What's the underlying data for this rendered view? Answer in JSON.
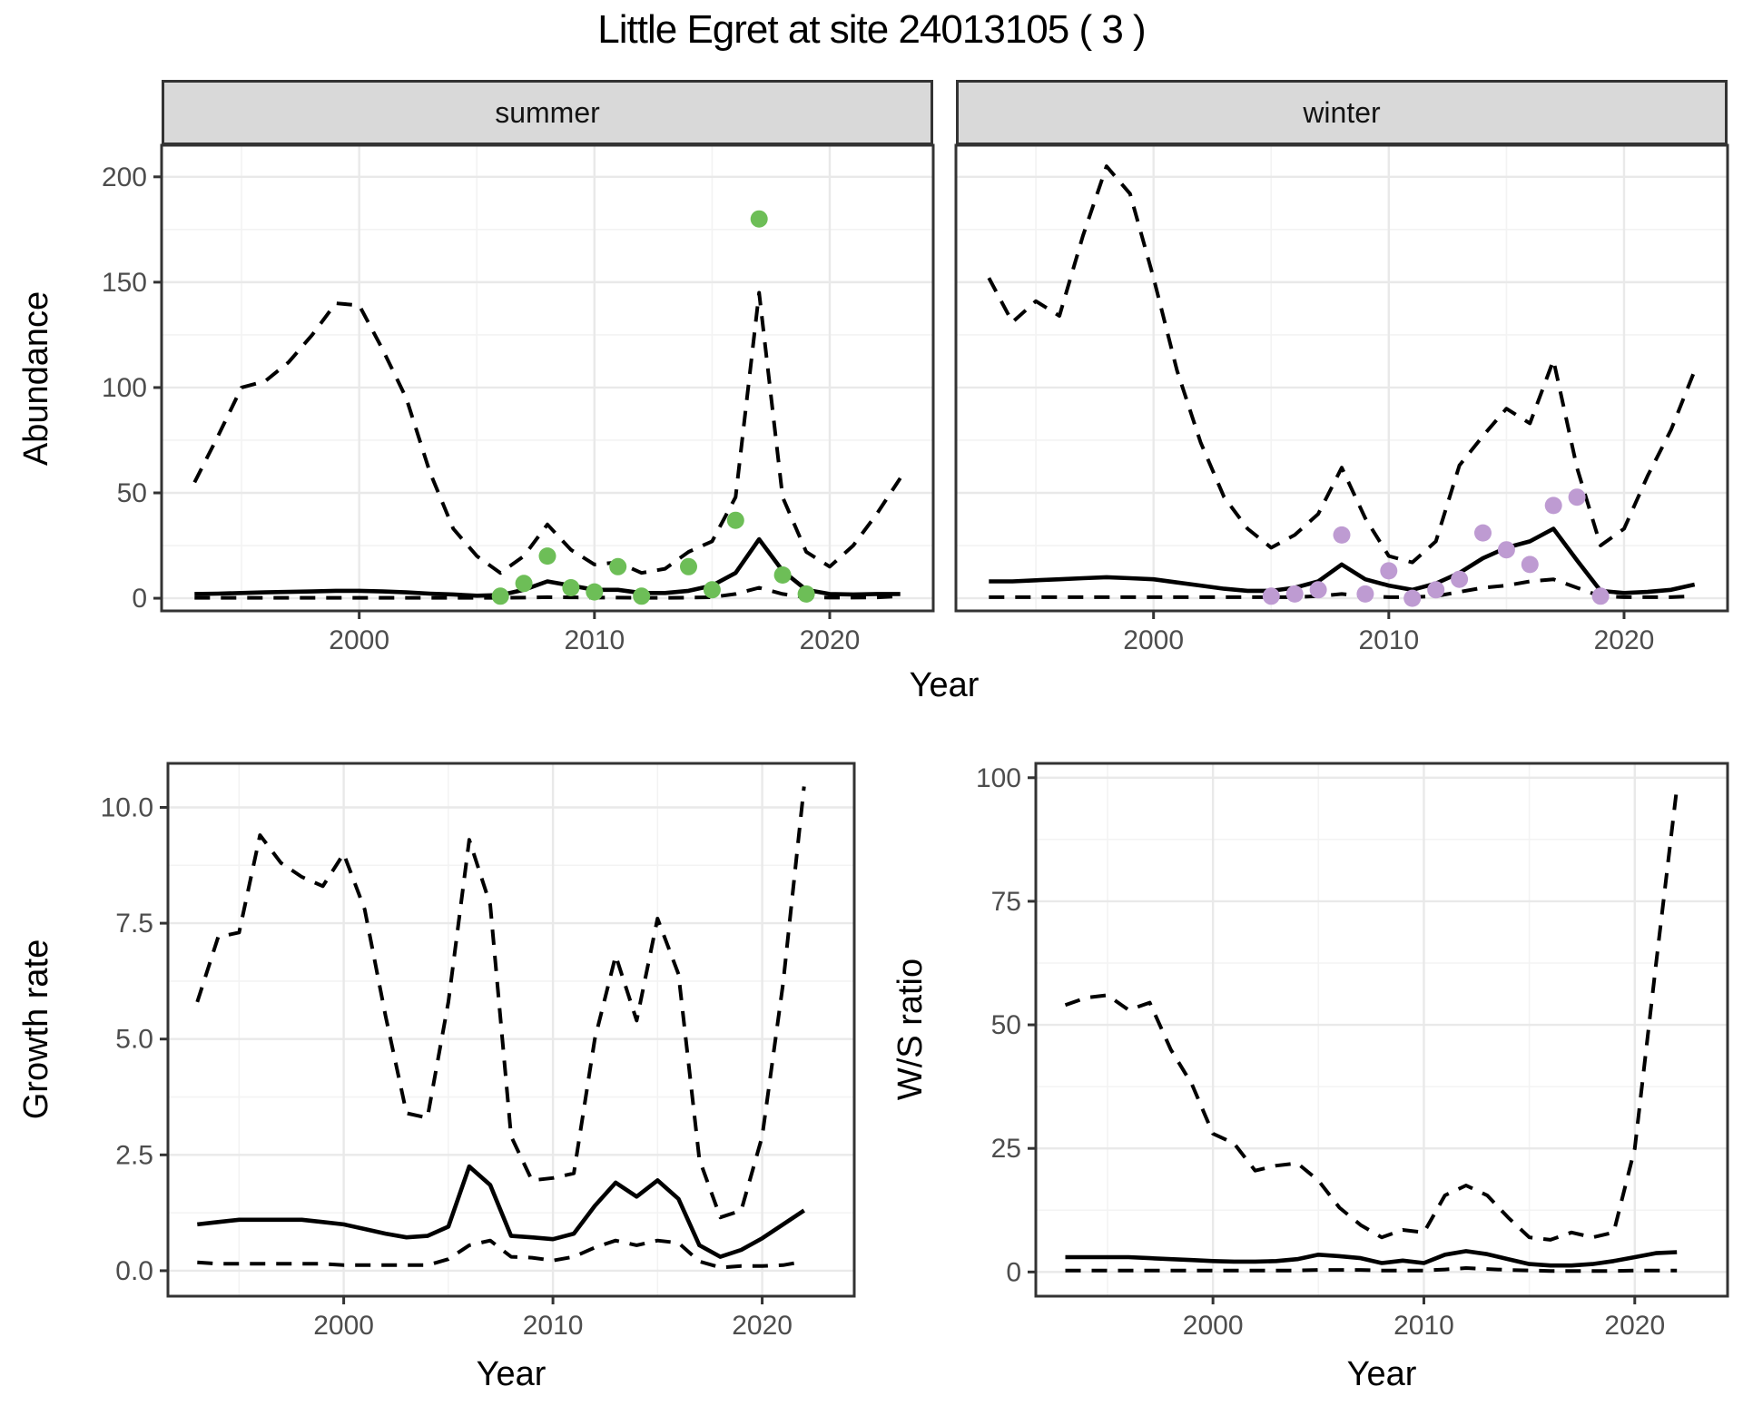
{
  "title": "Little Egret at site 24013105 ( 3 )",
  "colors": {
    "summer_points": "#6DBE57",
    "winter_points": "#BE9BD2",
    "line": "#000000",
    "strip_fill": "#d9d9d9",
    "panel_border": "#333333",
    "grid_major": "#e9e9e9",
    "grid_minor": "#f3f3f3",
    "tick_label": "#4d4d4d"
  },
  "chart_data": [
    {
      "id": "abundance",
      "type": "line",
      "title": "",
      "xlabel": "Year",
      "ylabel": "Abundance",
      "xlim": [
        1991.6,
        2024.4
      ],
      "ylim": [
        -6,
        215
      ],
      "xticks": [
        2000,
        2010,
        2020
      ],
      "yticks": [
        0,
        50,
        100,
        150,
        200
      ],
      "x_minor": [
        1995,
        2005,
        2015
      ],
      "y_minor": [
        25,
        75,
        125,
        175
      ],
      "grid": true,
      "legend": "none",
      "years": [
        1993,
        1994,
        1995,
        1996,
        1997,
        1998,
        1999,
        2000,
        2001,
        2002,
        2003,
        2004,
        2005,
        2006,
        2007,
        2008,
        2009,
        2010,
        2011,
        2012,
        2013,
        2014,
        2015,
        2016,
        2017,
        2018,
        2019,
        2020,
        2021,
        2022,
        2023
      ],
      "facets": [
        {
          "label": "summer",
          "series": [
            {
              "name": "upper_ci",
              "style": "dashed",
              "values": [
                55,
                77,
                100,
                103,
                112,
                125,
                140,
                139,
                118,
                95,
                60,
                33,
                20,
                12,
                20,
                35,
                23,
                16,
                17,
                12,
                14,
                22,
                27,
                48,
                145,
                48,
                22,
                15,
                25,
                40,
                57
              ]
            },
            {
              "name": "fit",
              "style": "solid",
              "values": [
                2,
                2.2,
                2.5,
                2.8,
                3,
                3.2,
                3.5,
                3.5,
                3.2,
                2.8,
                2.2,
                1.8,
                1.2,
                1.5,
                4,
                8,
                6,
                4,
                4,
                2.5,
                2.5,
                3.5,
                6,
                12,
                28,
                13,
                4,
                2,
                1.8,
                2,
                2
              ]
            },
            {
              "name": "lower_ci",
              "style": "dashed",
              "values": [
                0.2,
                0.2,
                0.2,
                0.2,
                0.2,
                0.2,
                0.2,
                0.2,
                0.2,
                0.2,
                0.2,
                0.2,
                0.2,
                0.2,
                0.3,
                0.5,
                0.4,
                0.3,
                0.3,
                0.2,
                0.2,
                0.3,
                0.5,
                2,
                5,
                2,
                0.5,
                0.3,
                0.3,
                0.4,
                1
              ]
            }
          ],
          "points": {
            "name": "observed_counts",
            "years": [
              2006,
              2007,
              2008,
              2009,
              2010,
              2011,
              2012,
              2014,
              2015,
              2016,
              2017,
              2018,
              2019
            ],
            "values": [
              1,
              7,
              20,
              5,
              3,
              15,
              1,
              15,
              4,
              37,
              180,
              11,
              2
            ]
          }
        },
        {
          "label": "winter",
          "series": [
            {
              "name": "upper_ci",
              "style": "dashed",
              "values": [
                152,
                131,
                141,
                134,
                172,
                205,
                192,
                152,
                108,
                74,
                48,
                33,
                24,
                30,
                40,
                62,
                38,
                20,
                17,
                27,
                63,
                77,
                90,
                83,
                113,
                62,
                25,
                33,
                58,
                80,
                108
              ]
            },
            {
              "name": "fit",
              "style": "solid",
              "values": [
                8,
                8,
                8.5,
                9,
                9.5,
                10,
                9.5,
                9,
                7.5,
                6,
                4.5,
                3.5,
                3.5,
                5,
                8,
                16,
                9,
                6,
                4,
                7,
                12,
                19,
                24,
                27,
                33,
                18,
                3.5,
                2.5,
                3,
                4,
                6.5
              ]
            },
            {
              "name": "lower_ci",
              "style": "dashed",
              "values": [
                0.5,
                0.5,
                0.5,
                0.5,
                0.5,
                0.5,
                0.5,
                0.5,
                0.5,
                0.5,
                0.5,
                0.5,
                0.5,
                0.5,
                1,
                2,
                1,
                0.5,
                0.5,
                1,
                3,
                5,
                6,
                8,
                9,
                5,
                1,
                0.5,
                0.5,
                0.5,
                1
              ]
            }
          ],
          "points": {
            "name": "observed_counts",
            "years": [
              2005,
              2006,
              2007,
              2008,
              2009,
              2010,
              2011,
              2012,
              2013,
              2014,
              2015,
              2016,
              2017,
              2018,
              2019
            ],
            "values": [
              1,
              2,
              4,
              30,
              2,
              13,
              0,
              4,
              9,
              31,
              23,
              16,
              44,
              48,
              1
            ]
          }
        }
      ]
    },
    {
      "id": "growth_rate",
      "type": "line",
      "title": "",
      "xlabel": "Year",
      "ylabel": "Growth rate",
      "xlim": [
        1991.6,
        2024.4
      ],
      "ylim": [
        -0.55,
        10.95
      ],
      "xticks": [
        2000,
        2010,
        2020
      ],
      "yticks": [
        0.0,
        2.5,
        5.0,
        7.5,
        10.0
      ],
      "ytick_labels": [
        "0.0",
        "2.5",
        "5.0",
        "7.5",
        "10.0"
      ],
      "x_minor": [
        1995,
        2005,
        2015
      ],
      "y_minor": [
        1.25,
        3.75,
        6.25,
        8.75
      ],
      "grid": true,
      "legend": "none",
      "years": [
        1993,
        1994,
        1995,
        1996,
        1997,
        1998,
        1999,
        2000,
        2001,
        2002,
        2003,
        2004,
        2005,
        2006,
        2007,
        2008,
        2009,
        2010,
        2011,
        2012,
        2013,
        2014,
        2015,
        2016,
        2017,
        2018,
        2019,
        2020,
        2021,
        2022
      ],
      "series": [
        {
          "name": "upper_ci",
          "style": "dashed",
          "values": [
            5.8,
            7.2,
            7.3,
            9.4,
            8.8,
            8.5,
            8.3,
            9.0,
            7.8,
            5.5,
            3.4,
            3.3,
            5.8,
            9.3,
            7.9,
            2.9,
            1.95,
            2.0,
            2.1,
            5.0,
            6.8,
            5.4,
            7.6,
            6.4,
            2.4,
            1.15,
            1.3,
            2.9,
            6.2,
            10.45
          ]
        },
        {
          "name": "fit",
          "style": "solid",
          "values": [
            1.0,
            1.05,
            1.1,
            1.1,
            1.1,
            1.1,
            1.05,
            1.0,
            0.9,
            0.8,
            0.72,
            0.75,
            0.95,
            2.25,
            1.85,
            0.75,
            0.72,
            0.68,
            0.8,
            1.4,
            1.9,
            1.6,
            1.95,
            1.55,
            0.55,
            0.3,
            0.45,
            0.7,
            1.0,
            1.3
          ]
        },
        {
          "name": "lower_ci",
          "style": "dashed",
          "values": [
            0.18,
            0.15,
            0.15,
            0.15,
            0.15,
            0.15,
            0.15,
            0.12,
            0.12,
            0.12,
            0.12,
            0.12,
            0.25,
            0.55,
            0.65,
            0.3,
            0.28,
            0.22,
            0.3,
            0.5,
            0.65,
            0.55,
            0.65,
            0.6,
            0.2,
            0.07,
            0.1,
            0.1,
            0.12,
            0.2
          ]
        }
      ]
    },
    {
      "id": "ws_ratio",
      "type": "line",
      "title": "",
      "xlabel": "Year",
      "ylabel": "W/S ratio",
      "xlim": [
        1991.6,
        2024.4
      ],
      "ylim": [
        -4.9,
        102.9
      ],
      "xticks": [
        2000,
        2010,
        2020
      ],
      "yticks": [
        0,
        25,
        50,
        75,
        100
      ],
      "x_minor": [
        1995,
        2005,
        2015
      ],
      "y_minor": [
        12.5,
        37.5,
        62.5,
        87.5
      ],
      "grid": true,
      "legend": "none",
      "years": [
        1993,
        1994,
        1995,
        1996,
        1997,
        1998,
        1999,
        2000,
        2001,
        2002,
        2003,
        2004,
        2005,
        2006,
        2007,
        2008,
        2009,
        2010,
        2011,
        2012,
        2013,
        2014,
        2015,
        2016,
        2017,
        2018,
        2019,
        2020,
        2021,
        2022
      ],
      "series": [
        {
          "name": "upper_ci",
          "style": "dashed",
          "values": [
            54,
            55.5,
            56,
            53,
            54.5,
            45,
            38,
            28,
            26,
            20.5,
            21.5,
            22,
            18.5,
            13,
            9.5,
            7,
            8.5,
            8,
            15.5,
            17.5,
            15.5,
            11,
            7,
            6.5,
            8,
            7,
            8,
            25,
            62,
            98
          ]
        },
        {
          "name": "fit",
          "style": "solid",
          "values": [
            3,
            3,
            3,
            3,
            2.8,
            2.6,
            2.4,
            2.2,
            2.1,
            2.1,
            2.2,
            2.6,
            3.5,
            3.2,
            2.8,
            1.8,
            2.3,
            1.8,
            3.5,
            4.2,
            3.6,
            2.6,
            1.6,
            1.3,
            1.3,
            1.6,
            2.2,
            3,
            3.8,
            4
          ]
        },
        {
          "name": "lower_ci",
          "style": "dashed",
          "values": [
            0.3,
            0.3,
            0.3,
            0.3,
            0.3,
            0.3,
            0.3,
            0.3,
            0.3,
            0.3,
            0.3,
            0.3,
            0.4,
            0.4,
            0.4,
            0.3,
            0.3,
            0.3,
            0.5,
            0.8,
            0.6,
            0.4,
            0.3,
            0.2,
            0.2,
            0.2,
            0.2,
            0.3,
            0.3,
            0.3
          ]
        }
      ]
    }
  ]
}
